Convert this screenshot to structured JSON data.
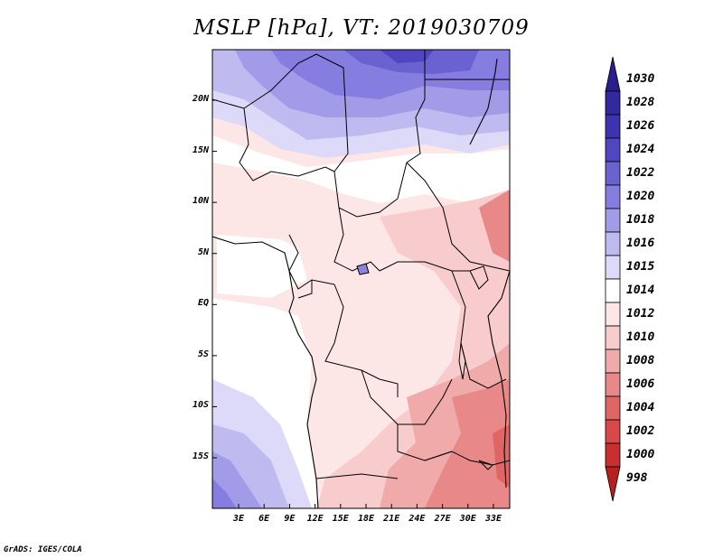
{
  "title": "MSLP [hPa], VT: 2019030709",
  "credit": "GrADS: IGES/COLA",
  "y_axis": {
    "ticks": [
      {
        "label": "20N",
        "lat": 20
      },
      {
        "label": "15N",
        "lat": 15
      },
      {
        "label": "10N",
        "lat": 10
      },
      {
        "label": "5N",
        "lat": 5
      },
      {
        "label": "EQ",
        "lat": 0
      },
      {
        "label": "5S",
        "lat": -5
      },
      {
        "label": "10S",
        "lat": -10
      },
      {
        "label": "15S",
        "lat": -15
      }
    ]
  },
  "x_axis": {
    "ticks": [
      {
        "label": "3E",
        "lon": 3
      },
      {
        "label": "6E",
        "lon": 6
      },
      {
        "label": "9E",
        "lon": 9
      },
      {
        "label": "12E",
        "lon": 12
      },
      {
        "label": "15E",
        "lon": 15
      },
      {
        "label": "18E",
        "lon": 18
      },
      {
        "label": "21E",
        "lon": 21
      },
      {
        "label": "24E",
        "lon": 24
      },
      {
        "label": "27E",
        "lon": 27
      },
      {
        "label": "30E",
        "lon": 30
      },
      {
        "label": "33E",
        "lon": 33
      }
    ]
  },
  "colorbar": {
    "levels": [
      {
        "label": "1030",
        "color": "#2a1e8c"
      },
      {
        "label": "1028",
        "color": "#33299e"
      },
      {
        "label": "1026",
        "color": "#3d33b0"
      },
      {
        "label": "1024",
        "color": "#5046c0"
      },
      {
        "label": "1022",
        "color": "#6a62d0"
      },
      {
        "label": "1020",
        "color": "#857ee0"
      },
      {
        "label": "1018",
        "color": "#a29ce8"
      },
      {
        "label": "1016",
        "color": "#bfbaf0"
      },
      {
        "label": "1015",
        "color": "#dcdaf8"
      },
      {
        "label": "1014",
        "color": "#ffffff"
      },
      {
        "label": "1012",
        "color": "#fde6e6"
      },
      {
        "label": "1010",
        "color": "#f8cccc"
      },
      {
        "label": "1008",
        "color": "#f0aaaa"
      },
      {
        "label": "1006",
        "color": "#e88888"
      },
      {
        "label": "1004",
        "color": "#e06666"
      },
      {
        "label": "1002",
        "color": "#d84848"
      },
      {
        "label": "1000",
        "color": "#c83030"
      },
      {
        "label": "998",
        "color": "#b82020"
      }
    ]
  }
}
